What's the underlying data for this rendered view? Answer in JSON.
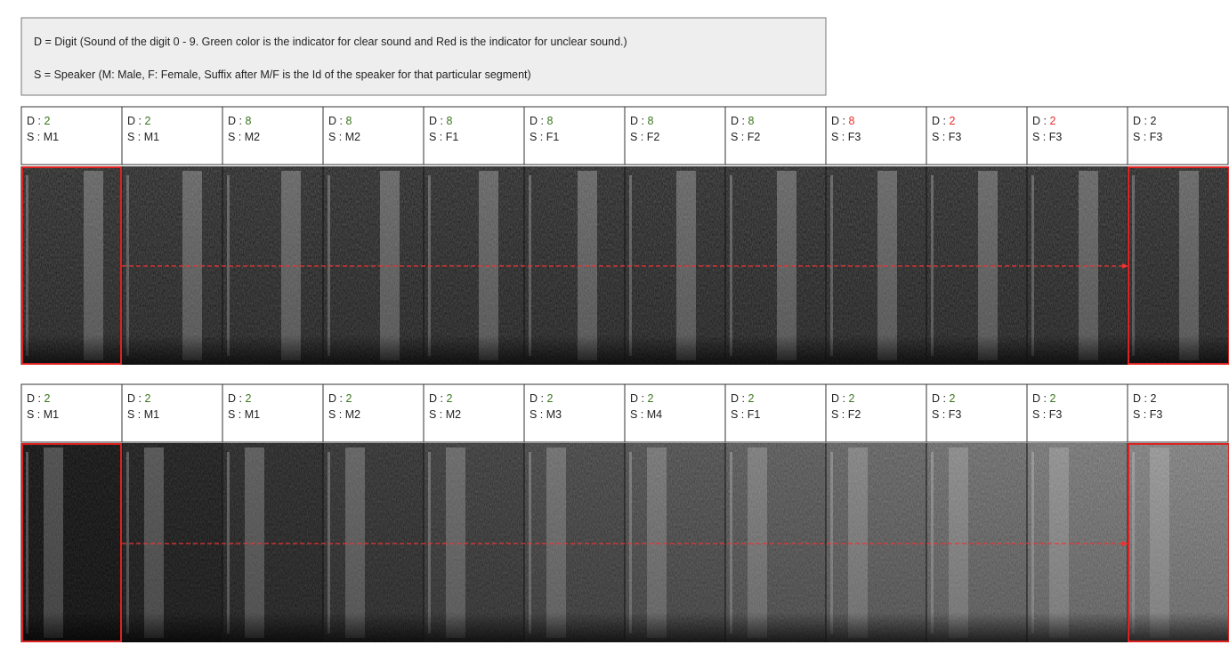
{
  "legend": [
    "D = Digit (Sound of the digit 0 - 9. Green color is the indicator for clear sound and Red is the indicator for unclear sound.)",
    "S = Speaker (M: Male, F: Female, Suffix after M/F is the Id of the speaker for that particular segment)"
  ],
  "digit_prefix": "D : ",
  "speaker_prefix": "S : ",
  "rows": [
    {
      "cells": [
        {
          "digit": "2",
          "digit_color": "#38761d",
          "speaker": "M1"
        },
        {
          "digit": "2",
          "digit_color": "#38761d",
          "speaker": "M1"
        },
        {
          "digit": "8",
          "digit_color": "#38761d",
          "speaker": "M2"
        },
        {
          "digit": "8",
          "digit_color": "#38761d",
          "speaker": "M2"
        },
        {
          "digit": "8",
          "digit_color": "#38761d",
          "speaker": "F1"
        },
        {
          "digit": "8",
          "digit_color": "#38761d",
          "speaker": "F1"
        },
        {
          "digit": "8",
          "digit_color": "#38761d",
          "speaker": "F2"
        },
        {
          "digit": "8",
          "digit_color": "#38761d",
          "speaker": "F2"
        },
        {
          "digit": "8",
          "digit_color": "#e8302a",
          "speaker": "F3"
        },
        {
          "digit": "2",
          "digit_color": "#e8302a",
          "speaker": "F3"
        },
        {
          "digit": "2",
          "digit_color": "#e8302a",
          "speaker": "F3"
        },
        {
          "digit": "2",
          "digit_color": "#222222",
          "speaker": "F3"
        }
      ]
    },
    {
      "cells": [
        {
          "digit": "2",
          "digit_color": "#38761d",
          "speaker": "M1"
        },
        {
          "digit": "2",
          "digit_color": "#38761d",
          "speaker": "M1"
        },
        {
          "digit": "2",
          "digit_color": "#38761d",
          "speaker": "M1"
        },
        {
          "digit": "2",
          "digit_color": "#38761d",
          "speaker": "M2"
        },
        {
          "digit": "2",
          "digit_color": "#38761d",
          "speaker": "M2"
        },
        {
          "digit": "2",
          "digit_color": "#38761d",
          "speaker": "M3"
        },
        {
          "digit": "2",
          "digit_color": "#38761d",
          "speaker": "M4"
        },
        {
          "digit": "2",
          "digit_color": "#38761d",
          "speaker": "F1"
        },
        {
          "digit": "2",
          "digit_color": "#38761d",
          "speaker": "F2"
        },
        {
          "digit": "2",
          "digit_color": "#38761d",
          "speaker": "F3"
        },
        {
          "digit": "2",
          "digit_color": "#38761d",
          "speaker": "F3"
        },
        {
          "digit": "2",
          "digit_color": "#222222",
          "speaker": "F3"
        }
      ]
    }
  ]
}
